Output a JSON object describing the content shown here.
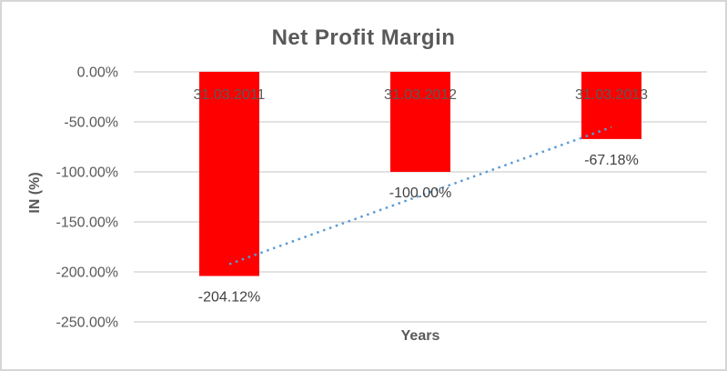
{
  "chart_data": {
    "type": "bar",
    "title": "Net Profit Margin",
    "xlabel": "Years",
    "ylabel": "IN (%)",
    "categories": [
      "31.03.2011",
      "31.03.2012",
      "31.03.2013"
    ],
    "values": [
      -204.12,
      -100.0,
      -67.18
    ],
    "data_labels": [
      "-204.12%",
      "-100.00%",
      "-67.18%"
    ],
    "ylim": [
      -250,
      0
    ],
    "yticks": {
      "values": [
        0,
        -50,
        -100,
        -150,
        -200,
        -250
      ],
      "labels": [
        "0.00%",
        "-50.00%",
        "-100.00%",
        "-150.00%",
        "-200.00%",
        "-250.00%"
      ]
    },
    "grid": true,
    "legend": "none",
    "trendline": {
      "type": "linear",
      "style": "dotted",
      "color": "#5b9bd5"
    },
    "colors": {
      "bar": "#ff0000",
      "gridline": "#d9d9d9",
      "title_text": "#595959",
      "tick_text": "#595959",
      "category_label_text": "#595959",
      "data_label_text": "#404040",
      "axis_title_text": "#595959",
      "frame_border": "#d6d6d6"
    }
  }
}
